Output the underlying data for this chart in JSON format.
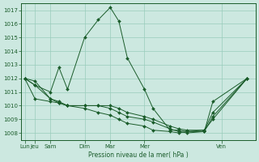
{
  "background_color": "#cce8e0",
  "grid_color": "#99ccbb",
  "line_color": "#1a5c2a",
  "xlabel": "Pression niveau de la mer( hPa )",
  "ylim": [
    1007.5,
    1017.5
  ],
  "yticks": [
    1008,
    1009,
    1010,
    1011,
    1012,
    1013,
    1014,
    1015,
    1016,
    1017
  ],
  "x_labels": [
    "Lun",
    "Jeu",
    "Sam",
    "Dim",
    "Mar",
    "Mer",
    "Ven"
  ],
  "figsize": [
    3.2,
    2.0
  ],
  "dpi": 100,
  "series": [
    {
      "x": [
        0,
        0.6,
        1.5,
        2.0,
        2.5,
        3.5,
        4.3,
        5.0,
        5.5,
        6.0,
        7.0,
        7.5,
        8.5,
        9.0,
        9.5,
        10.5,
        11.0,
        13.0
      ],
      "y": [
        1012,
        1011.5,
        1011.0,
        1012.8,
        1011.2,
        1015.0,
        1016.3,
        1017.2,
        1016.2,
        1013.5,
        1011.2,
        1009.8,
        1008.2,
        1008.2,
        1008.1,
        1008.1,
        1010.3,
        1012.0
      ]
    },
    {
      "x": [
        0,
        0.6,
        1.5,
        2.0,
        2.5,
        3.5,
        4.3,
        5.0,
        5.5,
        6.0,
        7.0,
        7.5,
        8.5,
        9.0,
        9.5,
        10.5,
        11.0,
        13.0
      ],
      "y": [
        1012,
        1010.5,
        1010.3,
        1010.2,
        1010.0,
        1010.0,
        1010.0,
        1010.0,
        1009.8,
        1009.5,
        1009.2,
        1009.0,
        1008.5,
        1008.3,
        1008.2,
        1008.2,
        1009.0,
        1012.0
      ]
    },
    {
      "x": [
        0,
        0.6,
        1.5,
        2.0,
        2.5,
        3.5,
        4.3,
        5.0,
        5.5,
        6.0,
        7.0,
        7.5,
        8.5,
        9.0,
        9.5,
        10.5,
        11.0,
        13.0
      ],
      "y": [
        1012,
        1011.8,
        1010.5,
        1010.3,
        1010.0,
        1010.0,
        1010.0,
        1009.8,
        1009.5,
        1009.2,
        1009.0,
        1008.8,
        1008.3,
        1008.1,
        1008.0,
        1008.1,
        1009.2,
        1012.0
      ]
    },
    {
      "x": [
        0,
        0.6,
        1.5,
        2.0,
        2.5,
        3.5,
        4.3,
        5.0,
        5.5,
        6.0,
        7.0,
        7.5,
        8.5,
        9.0,
        9.5,
        10.5,
        11.0,
        13.0
      ],
      "y": [
        1012,
        1011.5,
        1010.5,
        1010.2,
        1010.0,
        1009.8,
        1009.5,
        1009.3,
        1009.0,
        1008.7,
        1008.5,
        1008.2,
        1008.1,
        1008.0,
        1008.1,
        1008.2,
        1009.5,
        1012.0
      ]
    }
  ],
  "x_tick_positions": [
    0,
    0.6,
    1.5,
    3.5,
    5.0,
    7.0,
    11.5
  ],
  "xlim": [
    -0.2,
    13.5
  ]
}
